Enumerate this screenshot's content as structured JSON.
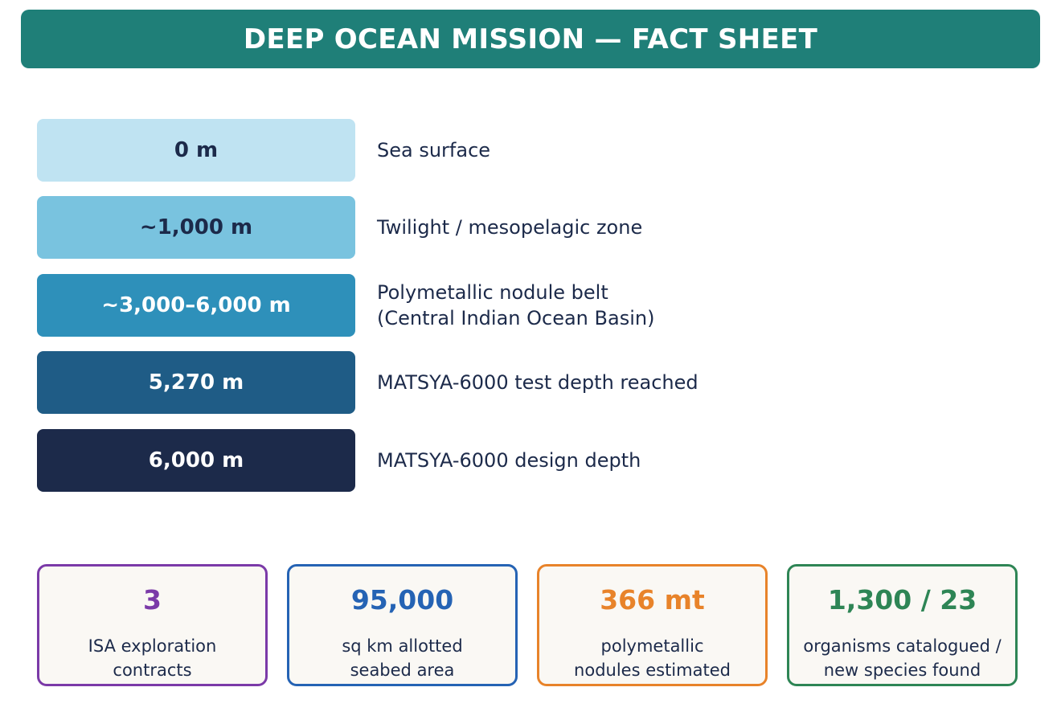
{
  "title": "DEEP OCEAN MISSION — FACT SHEET",
  "depth_rows": [
    {
      "depth": "0 m",
      "description": "Sea surface",
      "bg": "#bfe3f2",
      "fg": "#1c2a4a"
    },
    {
      "depth": "~1,000 m",
      "description": "Twilight / mesopelagic zone",
      "bg": "#79c3df",
      "fg": "#1c2a4a"
    },
    {
      "depth": "~3,000–6,000 m",
      "description": "Polymetallic nodule belt\n(Central Indian Ocean Basin)",
      "bg": "#2e90ba",
      "fg": "#ffffff"
    },
    {
      "depth": "5,270 m",
      "description": "MATSYA-6000 test depth reached",
      "bg": "#1f5c86",
      "fg": "#ffffff"
    },
    {
      "depth": "6,000 m",
      "description": "MATSYA-6000 design depth",
      "bg": "#1c2a4a",
      "fg": "#ffffff"
    }
  ],
  "stats": [
    {
      "value": "3",
      "label": "ISA exploration\ncontracts",
      "color": "#7b3aa8"
    },
    {
      "value": "95,000",
      "label": "sq km allotted\nseabed area",
      "color": "#2563b4"
    },
    {
      "value": "366 mt",
      "label": "polymetallic\nnodules estimated",
      "color": "#e8832a"
    },
    {
      "value": "1,300 / 23",
      "label": "organisms catalogued /\nnew species found",
      "color": "#2e8555"
    }
  ]
}
